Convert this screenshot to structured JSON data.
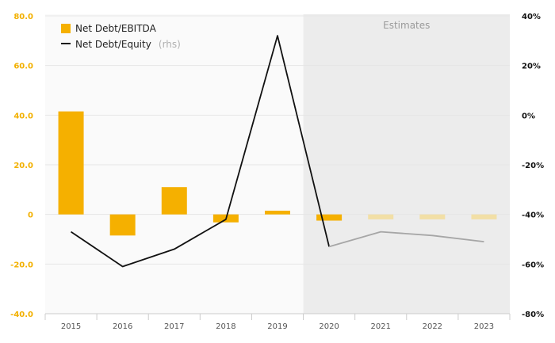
{
  "chart_data": {
    "type": "bar",
    "categories": [
      "2015",
      "2016",
      "2017",
      "2018",
      "2019",
      "2020",
      "2021",
      "2022",
      "2023"
    ],
    "series": [
      {
        "name": "Net Debt/EBITDA",
        "kind": "bar",
        "axis": "left",
        "values": [
          41.5,
          -8.5,
          11.0,
          -3.2,
          1.5,
          -2.5,
          -2.0,
          -2.0,
          -2.0
        ]
      },
      {
        "name": "Net Debt/Equity",
        "legend_suffix": "(rhs)",
        "kind": "line",
        "axis": "right",
        "values": [
          -47,
          -61,
          -54,
          -42,
          32,
          -53,
          -47,
          -48.5,
          -51
        ]
      }
    ],
    "left_axis": {
      "ylim": [
        -40,
        80
      ],
      "ticks": [
        80,
        60,
        40,
        20,
        0,
        -20,
        -40
      ],
      "tick_labels": [
        "80.0",
        "60.0",
        "40.0",
        "20.0",
        "0",
        "-20.0",
        "-40.0"
      ]
    },
    "right_axis": {
      "ylim": [
        -80,
        40
      ],
      "ticks": [
        40,
        20,
        0,
        -20,
        -40,
        -60,
        -80
      ],
      "tick_labels": [
        "40%",
        "20%",
        "0%",
        "-20%",
        "-40%",
        "-60%",
        "-80%"
      ]
    },
    "estimates": {
      "label": "Estimates",
      "start_category": "2020"
    },
    "legend_position": "top-left",
    "grid": true,
    "colors": {
      "bar": "#f5b000",
      "bar_estimate": "#f2dfa6",
      "line": "#111111",
      "line_estimate": "#a6a6a6",
      "estimates_shade": "#ececec",
      "left_ticks": "#f2b000",
      "grid": "#e6e6e6"
    }
  }
}
